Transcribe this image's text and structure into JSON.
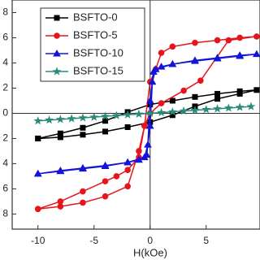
{
  "chart_data": {
    "type": "line",
    "x_label": "H(kOe)",
    "legend": "upper left",
    "grid": false,
    "xlim": [
      -12.3,
      9.8
    ],
    "ylim": [
      -9.2,
      9.0
    ],
    "xticks": [
      -10,
      -5,
      0,
      5
    ],
    "yticks": [
      {
        "value": -8,
        "label": "8"
      },
      {
        "value": -6,
        "label": "6"
      },
      {
        "value": -4,
        "label": "4"
      },
      {
        "value": -2,
        "label": "2"
      },
      0,
      2,
      4,
      6,
      8
    ],
    "series": [
      {
        "name": "BSFTO-0",
        "color": "#000000",
        "marker": "square",
        "x": [
          -10,
          -8,
          -6,
          -4,
          -2,
          0,
          2,
          4,
          6,
          8,
          9.5,
          8,
          6,
          4,
          2,
          0,
          -2,
          -4,
          -6,
          -8,
          -10
        ],
        "values": [
          -2.0,
          -1.9,
          -1.7,
          -1.45,
          -1.1,
          -0.7,
          -0.15,
          0.55,
          1.15,
          1.55,
          1.85,
          1.75,
          1.55,
          1.3,
          1.0,
          0.7,
          0.1,
          -0.6,
          -1.15,
          -1.6,
          -2.0
        ]
      },
      {
        "name": "BSFTO-5",
        "color": "#e8141b",
        "marker": "circle",
        "x": [
          -10,
          -8,
          -6,
          -4,
          -2,
          -1,
          -0.5,
          0,
          1,
          3,
          4.5,
          7,
          9.5,
          8,
          6,
          4,
          2,
          1,
          0.5,
          0,
          -0.5,
          -1,
          -2,
          -3,
          -4,
          -6,
          -8,
          -10
        ],
        "values": [
          -7.6,
          -7.4,
          -7.1,
          -6.6,
          -5.8,
          -3.0,
          -1.0,
          0,
          0.8,
          1.8,
          2.6,
          5.8,
          6.1,
          6.0,
          5.8,
          5.6,
          5.3,
          4.8,
          3.5,
          2.5,
          -1.0,
          -3.5,
          -4.5,
          -5.0,
          -5.4,
          -6.2,
          -7.0,
          -7.6
        ]
      },
      {
        "name": "BSFTO-10",
        "color": "#1414d8",
        "marker": "triangle",
        "x": [
          -10,
          -8,
          -6,
          -4,
          -2,
          -1,
          -0.3,
          0,
          0.2,
          0.5,
          2,
          4,
          6,
          8,
          9.5,
          8,
          6,
          4,
          2,
          1,
          0.3,
          0,
          -0.2,
          -0.5,
          -2,
          -4,
          -6,
          -8,
          -10
        ],
        "values": [
          -4.8,
          -4.55,
          -4.35,
          -4.15,
          -3.9,
          -3.7,
          -3.3,
          -1.0,
          2.5,
          3.5,
          3.9,
          4.2,
          4.4,
          4.6,
          4.7,
          4.55,
          4.35,
          4.15,
          3.9,
          3.7,
          3.3,
          1.0,
          -2.5,
          -3.5,
          -3.9,
          -4.2,
          -4.4,
          -4.6,
          -4.8
        ]
      },
      {
        "name": "BSFTO-15",
        "color": "#2a8a7a",
        "marker": "star",
        "x": [
          -10,
          -9,
          -8,
          -7,
          -6,
          -5,
          -4,
          -3,
          -2,
          -1,
          0,
          1,
          2,
          3,
          4,
          5,
          6,
          7,
          8,
          9
        ],
        "values": [
          -0.6,
          -0.54,
          -0.48,
          -0.42,
          -0.36,
          -0.3,
          -0.24,
          -0.18,
          -0.12,
          -0.06,
          0,
          0.06,
          0.12,
          0.18,
          0.24,
          0.3,
          0.36,
          0.42,
          0.48,
          0.54
        ]
      }
    ]
  }
}
